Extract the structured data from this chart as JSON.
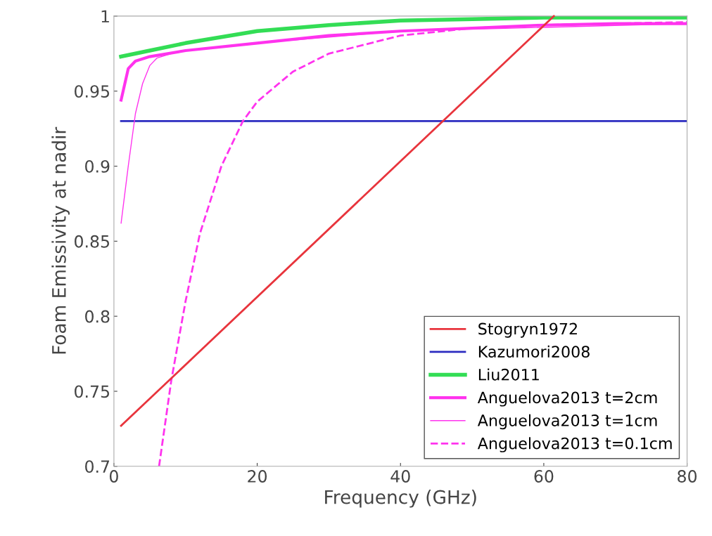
{
  "chart_data": {
    "type": "line",
    "xlabel": "Frequency (GHz)",
    "ylabel": "Foam Emissivity at nadir",
    "xlim": [
      0,
      80
    ],
    "ylim": [
      0.7,
      1
    ],
    "xticks": [
      0,
      20,
      40,
      60,
      80
    ],
    "yticks": [
      0.7,
      0.75,
      0.8,
      0.85,
      0.9,
      0.95,
      1
    ],
    "grid": false,
    "legend": "bottom right",
    "series": [
      {
        "name": "Stogryn1972",
        "color": "#e8343c",
        "x": [
          1,
          61.4
        ],
        "values": [
          0.727,
          1.0
        ],
        "line_style": "solid"
      },
      {
        "name": "Kazumori2008",
        "color": "#2b2bc0",
        "x": [
          1,
          80
        ],
        "values": [
          0.93,
          0.93
        ],
        "line_style": "solid"
      },
      {
        "name": "Liu2011",
        "color": "#33dd55",
        "x": [
          1,
          3,
          5,
          10,
          20,
          30,
          40,
          50,
          60,
          70,
          80
        ],
        "values": [
          0.973,
          0.975,
          0.977,
          0.982,
          0.99,
          0.994,
          0.997,
          0.998,
          0.999,
          0.999,
          0.999
        ],
        "line_style": "solid"
      },
      {
        "name": "Anguelova2013 t=2cm",
        "color": "#ff33ee",
        "x": [
          1,
          2,
          3,
          5,
          10,
          20,
          30,
          40,
          50,
          60,
          70,
          80
        ],
        "values": [
          0.944,
          0.965,
          0.97,
          0.973,
          0.977,
          0.982,
          0.987,
          0.99,
          0.992,
          0.994,
          0.995,
          0.995
        ],
        "line_style": "solid"
      },
      {
        "name": "Anguelova2013 t=1cm",
        "color": "#ff33ee",
        "x": [
          1,
          2,
          3,
          4,
          5,
          6,
          8,
          10,
          20,
          40,
          80
        ],
        "values": [
          0.862,
          0.9,
          0.935,
          0.955,
          0.967,
          0.972,
          0.975,
          0.977,
          0.982,
          0.99,
          0.995
        ],
        "line_style": "solid"
      },
      {
        "name": "Anguelova2013 t=0.1cm",
        "color": "#ff33ee",
        "x": [
          6.3,
          8,
          10,
          12,
          15,
          18,
          20,
          25,
          30,
          40,
          50,
          60,
          70,
          80
        ],
        "values": [
          0.7,
          0.757,
          0.81,
          0.855,
          0.9,
          0.93,
          0.943,
          0.963,
          0.975,
          0.987,
          0.992,
          0.994,
          0.995,
          0.996
        ],
        "line_style": "dashed"
      }
    ]
  }
}
